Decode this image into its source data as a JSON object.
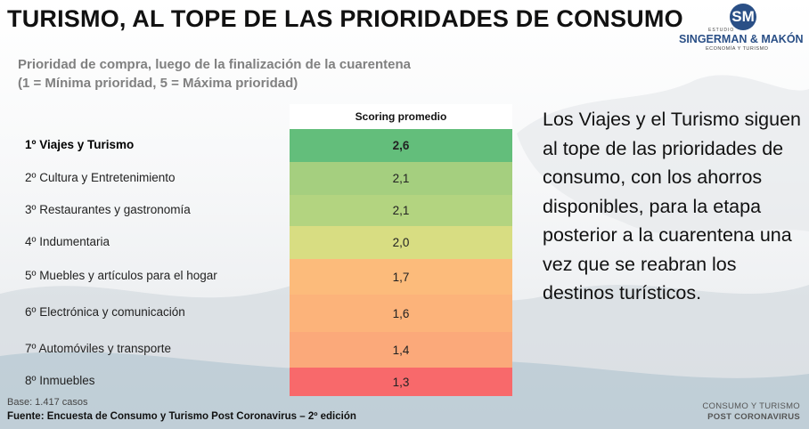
{
  "title": "TURISMO, AL TOPE DE LAS PRIORIDADES DE CONSUMO",
  "logo": {
    "monogram": "SM",
    "studio": "ESTUDIO",
    "name": "SINGERMAN & MAKÓN",
    "tagline": "ECONOMÍA Y TURISMO"
  },
  "subtitle": {
    "line1": "Prioridad de compra, luego de la finalización de la cuarentena",
    "line2": "(1 = Mínima prioridad, 5 = Máxima prioridad)"
  },
  "table": {
    "header": "Scoring promedio",
    "rows": [
      {
        "label": "1º  Viajes y Turismo",
        "score": "2,6",
        "color": "#63be7b"
      },
      {
        "label": "2º  Cultura y Entretenimiento",
        "score": "2,1",
        "color": "#a5cf7f"
      },
      {
        "label": "3º  Restaurantes y gastronomía",
        "score": "2,1",
        "color": "#b3d480"
      },
      {
        "label": "4º  Indumentaria",
        "score": "2,0",
        "color": "#d8dd82"
      },
      {
        "label": "5º  Muebles y artículos para el hogar",
        "score": "1,7",
        "color": "#fcbb7b"
      },
      {
        "label": "6º  Electrónica y comunicación",
        "score": "1,6",
        "color": "#fcb37a"
      },
      {
        "label": "7º  Automóviles y transporte",
        "score": "1,4",
        "color": "#fba97a"
      },
      {
        "label": "8º  Inmuebles",
        "score": "1,3",
        "color": "#f8696b"
      }
    ]
  },
  "right_text": "Los Viajes y el Turismo siguen al tope de las prioridades de consumo, con los ahorros disponibles, para la etapa posterior a la cuarentena una vez que se reabran los destinos turísticos.",
  "base": "Base: 1.417 casos",
  "source": "Fuente: Encuesta de Consumo y Turismo Post Coronavirus – 2º edición",
  "footer": {
    "line1": "CONSUMO Y TURISMO",
    "line2": "POST CORONAVIRUS"
  }
}
